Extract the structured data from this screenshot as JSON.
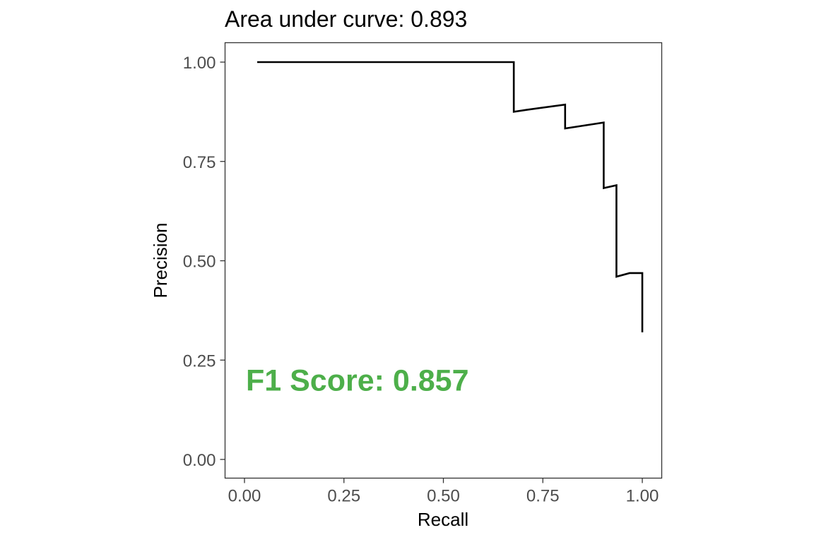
{
  "chart_data": {
    "type": "line",
    "title": "Area under curve: 0.893",
    "xlabel": "Recall",
    "ylabel": "Precision",
    "xlim": [
      0,
      1
    ],
    "ylim": [
      0,
      1
    ],
    "x_ticks": [
      0,
      0.25,
      0.5,
      0.75,
      1
    ],
    "x_tick_labels": [
      "0.00",
      "0.25",
      "0.50",
      "0.75",
      "1.00"
    ],
    "y_ticks": [
      0,
      0.25,
      0.5,
      0.75,
      1
    ],
    "y_tick_labels": [
      "0.00",
      "0.25",
      "0.50",
      "0.75",
      "1.00"
    ],
    "grid": false,
    "legend": "none",
    "series": [
      {
        "color": "#000000",
        "x": [
          0.032,
          0.677,
          0.677,
          0.71,
          0.806,
          0.806,
          0.903,
          0.903,
          0.935,
          0.935,
          0.968,
          1.0,
          1.0
        ],
        "y": [
          1.0,
          1.0,
          0.875,
          0.88,
          0.893,
          0.833,
          0.848,
          0.683,
          0.69,
          0.46,
          0.469,
          0.469,
          0.32
        ]
      }
    ],
    "annotation": {
      "text": "F1 Score: 0.857",
      "x": 0.0,
      "y": 0.2,
      "color": "#4daf4a"
    }
  }
}
